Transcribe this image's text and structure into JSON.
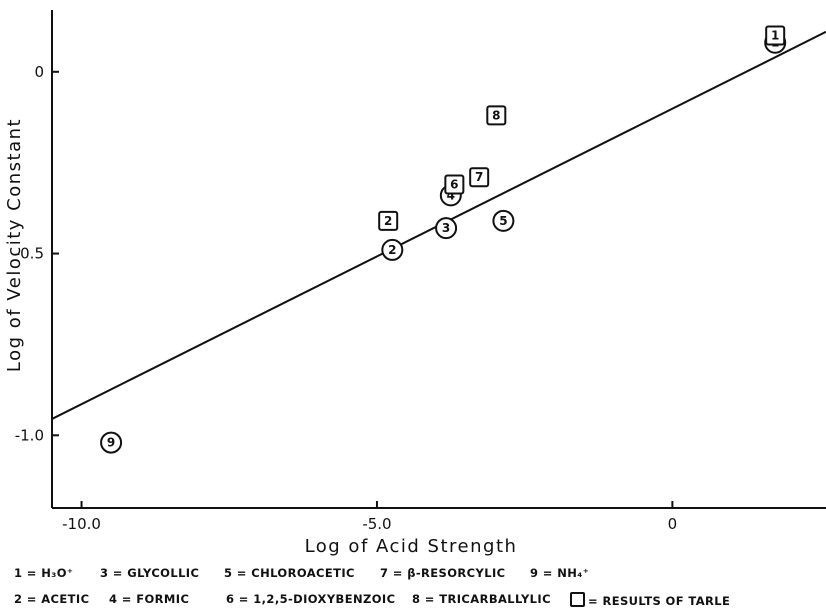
{
  "chart_data": {
    "type": "scatter",
    "xlabel": "Log of Acid Strength",
    "ylabel": "Log of Velocity Constant",
    "xlim": [
      -10.5,
      2.6
    ],
    "ylim": [
      -1.2,
      0.17
    ],
    "x_ticks": [
      {
        "value": -10.0,
        "label": "-10.0"
      },
      {
        "value": -5.0,
        "label": "-5.0"
      },
      {
        "value": 0,
        "label": "0"
      }
    ],
    "y_ticks": [
      {
        "value": 0,
        "label": "0"
      },
      {
        "value": -0.5,
        "label": "-0.5"
      },
      {
        "value": -1.0,
        "label": "-1.0"
      }
    ],
    "fit_line": {
      "x": [
        -10.5,
        2.6
      ],
      "y": [
        -0.955,
        0.11
      ]
    },
    "series": [
      {
        "marker": "circle",
        "points": [
          {
            "label": "1",
            "x": 1.74,
            "y": 0.08
          },
          {
            "label": "2",
            "x": -4.74,
            "y": -0.49
          },
          {
            "label": "3",
            "x": -3.83,
            "y": -0.43
          },
          {
            "label": "4",
            "x": -3.75,
            "y": -0.34
          },
          {
            "label": "5",
            "x": -2.86,
            "y": -0.41
          },
          {
            "label": "9",
            "x": -9.5,
            "y": -1.02
          }
        ]
      },
      {
        "name": "Results of Tarle",
        "marker": "square",
        "points": [
          {
            "label": "1",
            "x": 1.74,
            "y": 0.1
          },
          {
            "label": "2",
            "x": -4.81,
            "y": -0.41
          },
          {
            "label": "6",
            "x": -3.69,
            "y": -0.31
          },
          {
            "label": "7",
            "x": -3.27,
            "y": -0.29
          },
          {
            "label": "8",
            "x": -2.98,
            "y": -0.12
          }
        ]
      }
    ]
  },
  "legend": {
    "row1": [
      "1 = H₃O⁺",
      "3 = GLYCOLLIC",
      "5 = CHLOROACETIC",
      "7 = β-RESORCYLIC",
      "9 = NH₄⁺"
    ],
    "row2": [
      "2 = ACETIC",
      "4 = FORMIC",
      "6 = 1,2,5-DIOXYBENZOIC",
      "8 = TRICARBALLYLIC"
    ],
    "square_entry": "= RESULTS OF TARLE"
  }
}
